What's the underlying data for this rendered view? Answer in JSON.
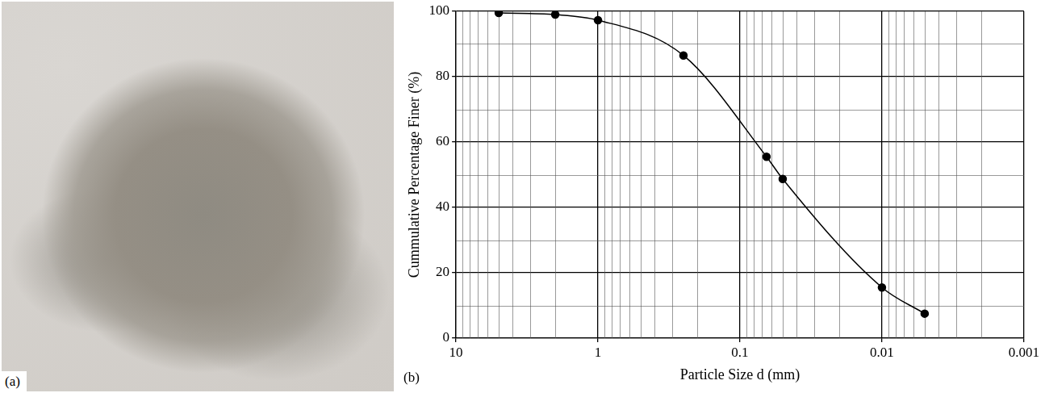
{
  "panels": {
    "photo": {
      "label": "(a)"
    },
    "chart": {
      "label": "(b)"
    }
  },
  "chart_data": {
    "type": "line",
    "x_label": "Particle Size d (mm)",
    "y_label": "Cummulative Percentage Finer (%)",
    "x": [
      5,
      2,
      1,
      0.25,
      0.065,
      0.05,
      0.01,
      0.005
    ],
    "values": [
      99.5,
      99,
      97.3,
      86.5,
      55.5,
      48.7,
      15.5,
      7.5
    ],
    "color": "#000000",
    "marker": "circle",
    "line_style": "solid",
    "log": "x",
    "xlim": [
      10,
      0.001
    ],
    "xticks": [
      10,
      1,
      0.1,
      0.01,
      0.001
    ],
    "ylim": [
      0,
      100
    ],
    "yticks": [
      0,
      20,
      40,
      60,
      80,
      100
    ],
    "grid": true
  }
}
